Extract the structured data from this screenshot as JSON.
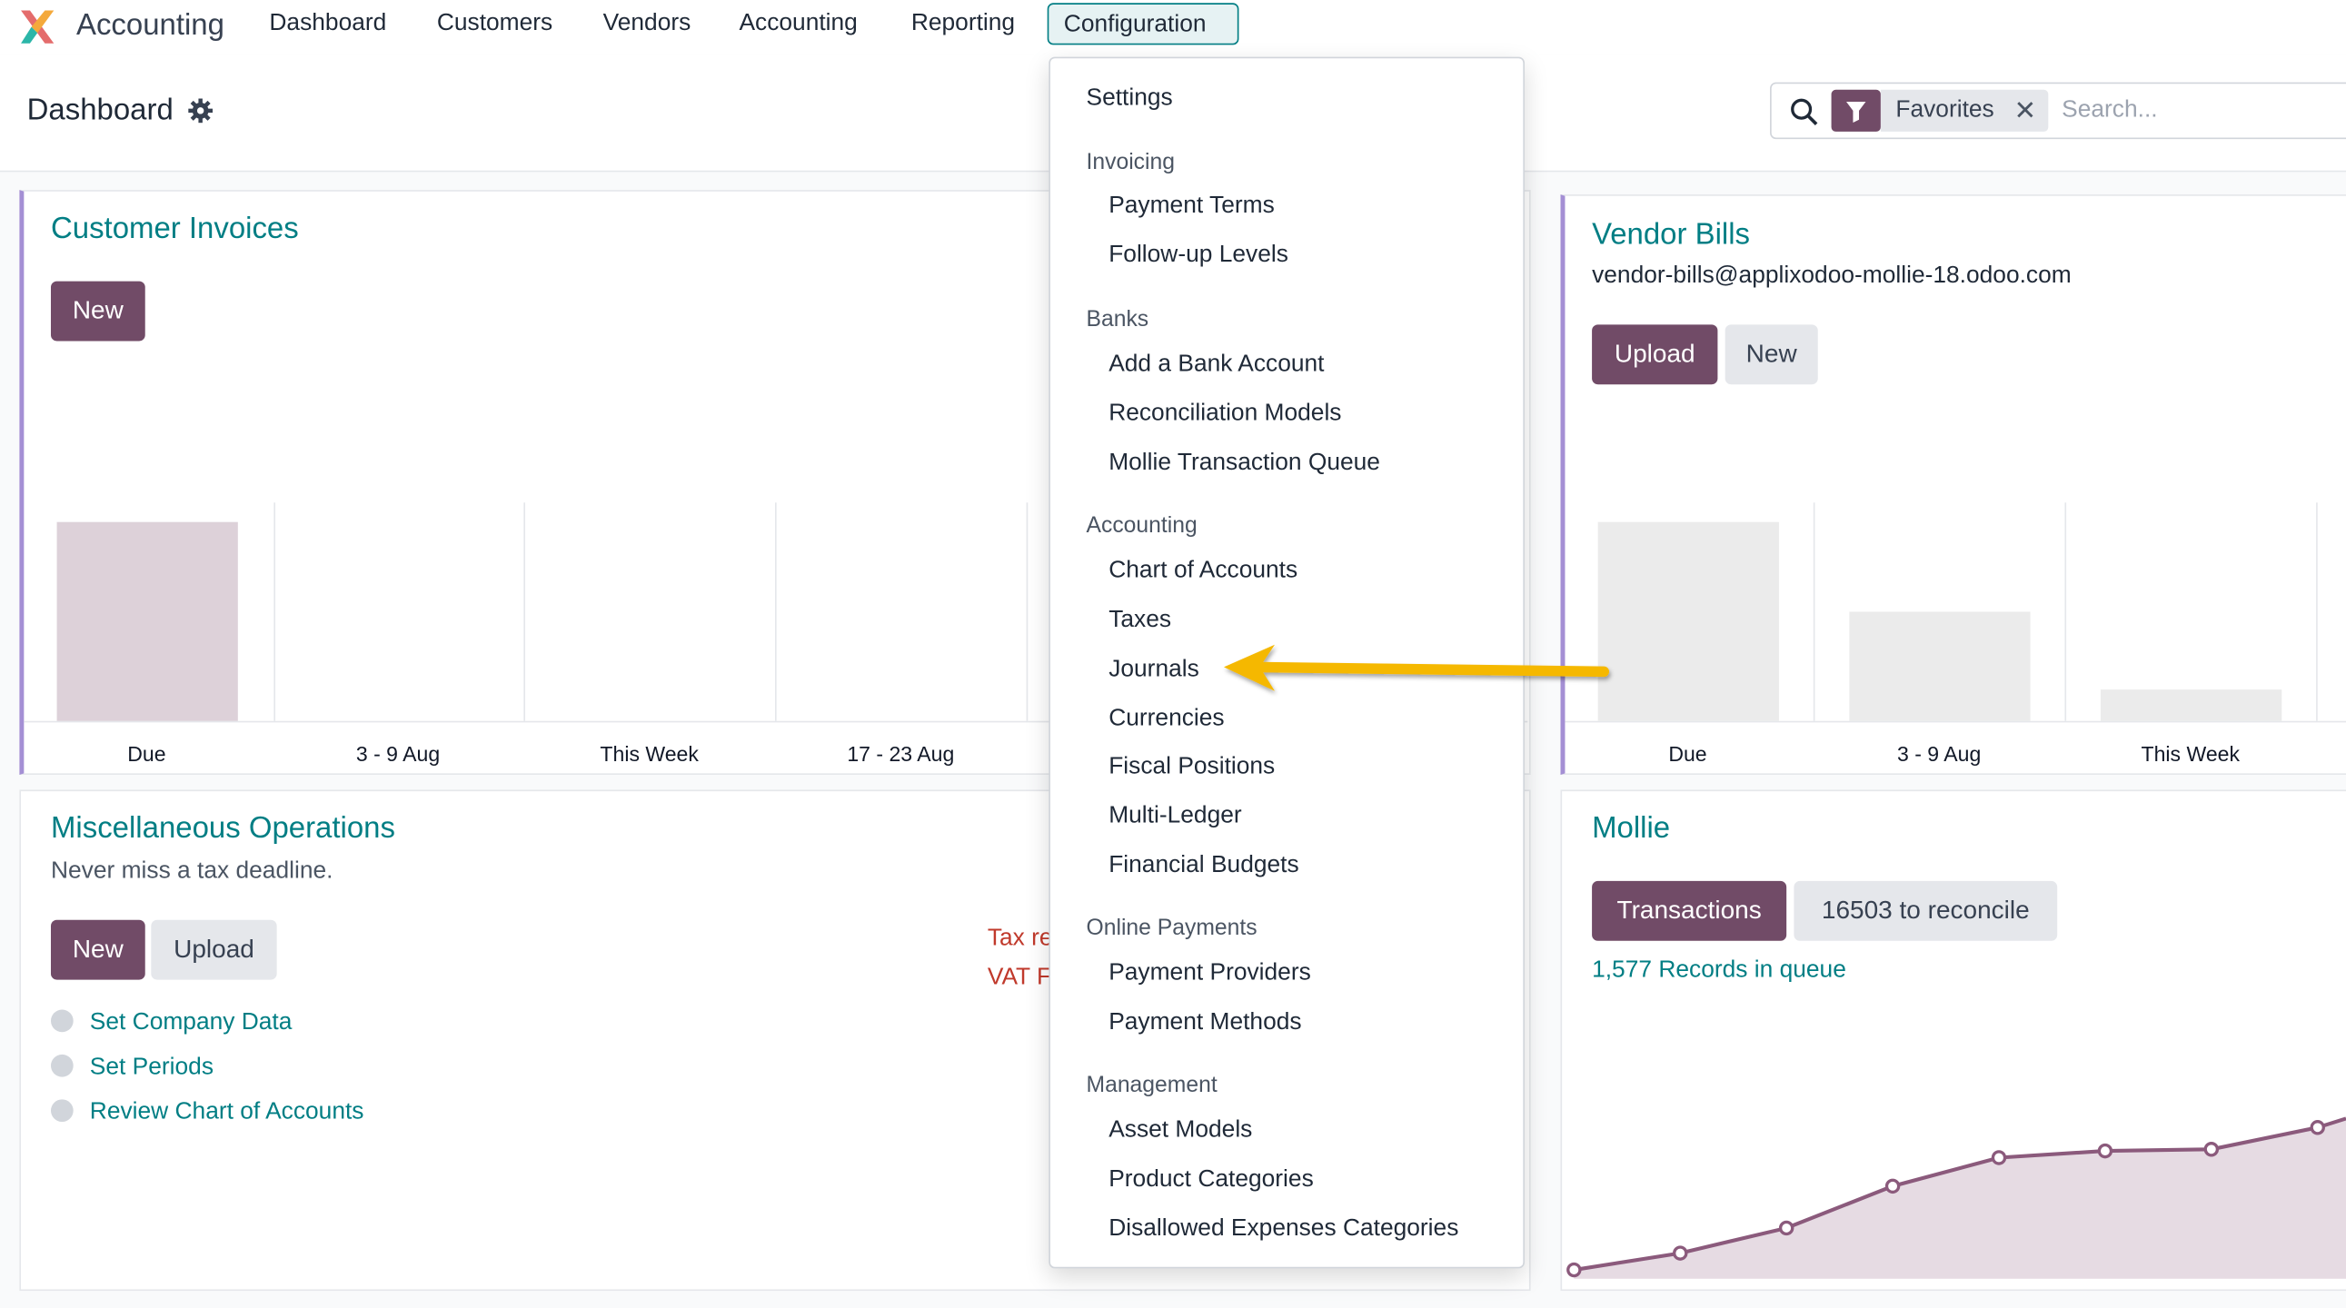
{
  "navbar": {
    "app_name": "Accounting",
    "items": [
      "Dashboard",
      "Customers",
      "Vendors",
      "Accounting",
      "Reporting"
    ],
    "active_item": "Configuration"
  },
  "control_panel": {
    "title": "Dashboard",
    "search": {
      "facet_label": "Favorites",
      "placeholder": "Search..."
    }
  },
  "customer_invoices": {
    "title": "Customer Invoices",
    "new_label": "New",
    "chart_labels": [
      "Due",
      "3 - 9 Aug",
      "This Week",
      "17 - 23 Aug"
    ]
  },
  "vendor_bills": {
    "title": "Vendor Bills",
    "email": "vendor-bills@applixodoo-mollie-18.odoo.com",
    "upload_label": "Upload",
    "new_label": "New",
    "chart_labels": [
      "Due",
      "3 - 9 Aug",
      "This Week"
    ]
  },
  "misc_operations": {
    "title": "Miscellaneous Operations",
    "subtitle": "Never miss a tax deadline.",
    "new_label": "New",
    "upload_label": "Upload",
    "steps": [
      "Set Company Data",
      "Set Periods",
      "Review Chart of Accounts"
    ],
    "clipped_red_1": "Tax re",
    "clipped_red_2": "VAT F"
  },
  "mollie": {
    "title": "Mollie",
    "transactions_label": "Transactions",
    "reconcile_label": "16503 to reconcile",
    "queue_label": "1,577 Records in queue"
  },
  "configuration_menu": {
    "settings": "Settings",
    "sections": [
      {
        "header": "Invoicing",
        "items": [
          "Payment Terms",
          "Follow-up Levels"
        ]
      },
      {
        "header": "Banks",
        "items": [
          "Add a Bank Account",
          "Reconciliation Models",
          "Mollie Transaction Queue"
        ]
      },
      {
        "header": "Accounting",
        "items": [
          "Chart of Accounts",
          "Taxes",
          "Journals",
          "Currencies",
          "Fiscal Positions",
          "Multi-Ledger",
          "Financial Budgets"
        ]
      },
      {
        "header": "Online Payments",
        "items": [
          "Payment Providers",
          "Payment Methods"
        ]
      },
      {
        "header": "Management",
        "items": [
          "Asset Models",
          "Product Categories",
          "Disallowed Expenses Categories"
        ]
      }
    ]
  },
  "colors": {
    "brand": "#714b67",
    "accent": "#017e84",
    "annotation_arrow": "#f5b800"
  },
  "chart_data": [
    {
      "type": "bar",
      "categories": [
        "Due",
        "3 - 9 Aug",
        "This Week",
        "17 - 23 Aug"
      ],
      "values": [
        1,
        0,
        0,
        0
      ]
    },
    {
      "type": "bar",
      "categories": [
        "Due",
        "3 - 9 Aug",
        "This Week"
      ],
      "values": [
        1,
        0.55,
        0.16
      ]
    },
    {
      "type": "area",
      "x": [
        1,
        2,
        3,
        4,
        5,
        6,
        7,
        8
      ],
      "values": [
        0,
        0.1,
        0.25,
        0.5,
        0.67,
        0.71,
        0.72,
        0.85
      ]
    }
  ]
}
